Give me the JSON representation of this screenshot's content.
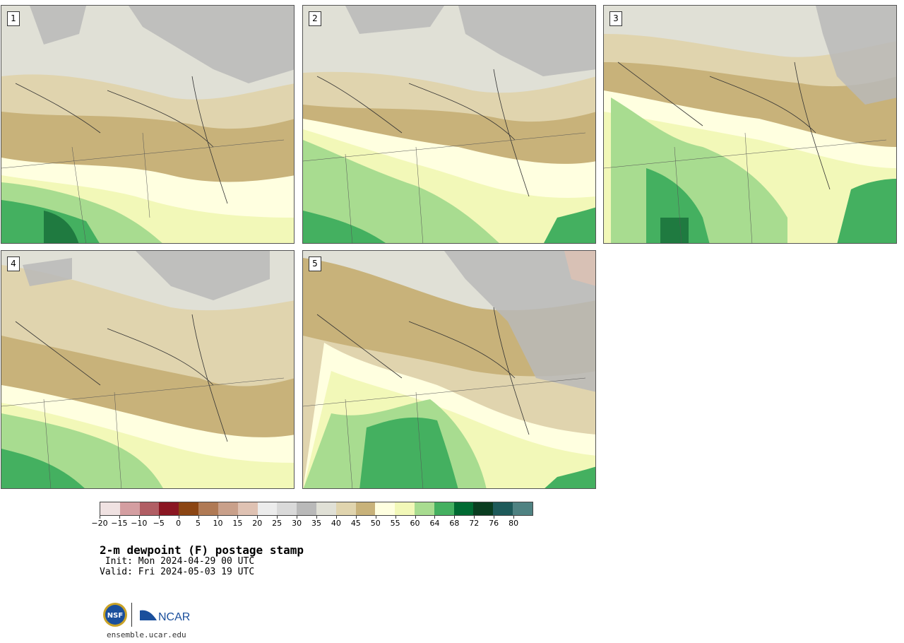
{
  "panels": [
    {
      "number": "1"
    },
    {
      "number": "2"
    },
    {
      "number": "3"
    },
    {
      "number": "4"
    },
    {
      "number": "5"
    }
  ],
  "colorbar": {
    "colors": [
      "#f0e2e2",
      "#d49ea1",
      "#b15e64",
      "#8a1622",
      "#8b4513",
      "#b07a55",
      "#c9a08a",
      "#dfc2b3",
      "#ececec",
      "#d9d9d9",
      "#b9b9b9",
      "#e0e0d6",
      "#e0d4ae",
      "#c8b27a",
      "#ffffe0",
      "#f2f8b8",
      "#a8dc90",
      "#44b060",
      "#006a32",
      "#0a3d20",
      "#1e5a5a",
      "#4f8282"
    ],
    "tick_labels": [
      "−20",
      "−15",
      "−10",
      "−5",
      "0",
      "5",
      "10",
      "15",
      "20",
      "25",
      "30",
      "35",
      "40",
      "45",
      "50",
      "55",
      "60",
      "64",
      "68",
      "72",
      "76",
      "80"
    ]
  },
  "title": "2-m dewpoint (F) postage stamp",
  "init": " Init: Mon 2024-04-29 00 UTC",
  "valid": "Valid: Fri 2024-05-03 19 UTC",
  "logos": {
    "nsf": "NSF",
    "ncar": "NCAR"
  },
  "url": "ensemble.ucar.edu"
}
